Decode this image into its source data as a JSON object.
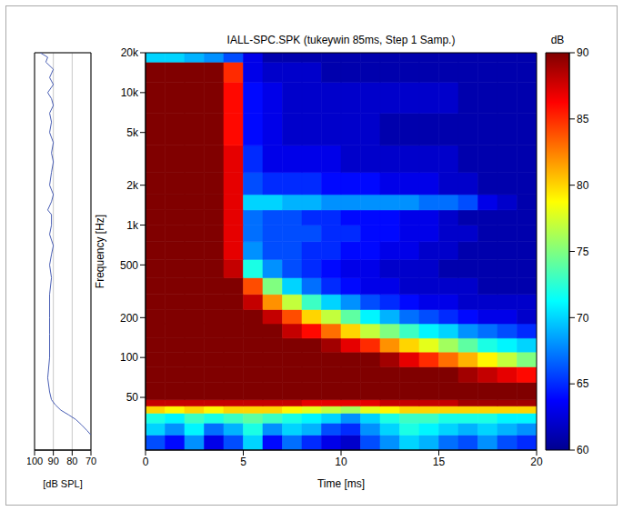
{
  "chart_data": [
    {
      "type": "line",
      "xlabel": "[dB SPL]",
      "xlim": [
        100,
        70
      ],
      "xticks": [
        100,
        90,
        80,
        70
      ],
      "ylim": [
        20,
        20000
      ],
      "yticks": [
        50,
        100,
        200,
        500,
        {
          "value": 1000,
          "label": "1k"
        },
        {
          "value": 2000,
          "label": "2k"
        },
        {
          "value": 5000,
          "label": "5k"
        },
        {
          "value": 10000,
          "label": "10k"
        },
        {
          "value": 20000,
          "label": "20k"
        }
      ],
      "log": "y",
      "grid": true,
      "tick_labels": "x",
      "color": "#4a5fb5",
      "x": [
        97,
        93,
        94,
        90,
        92,
        90,
        93,
        91,
        90,
        92,
        91,
        92,
        90,
        91,
        90,
        91,
        92,
        90,
        91,
        93,
        91,
        91,
        92,
        90,
        91,
        92,
        91,
        92,
        92,
        92,
        92,
        93,
        92,
        91,
        89,
        86,
        82,
        78,
        75,
        72,
        70
      ],
      "y": [
        20000,
        18500,
        17000,
        15000,
        13000,
        11500,
        10000,
        9000,
        8000,
        7000,
        6000,
        5000,
        4200,
        3500,
        3000,
        2500,
        2000,
        1700,
        1500,
        1300,
        1200,
        1000,
        850,
        700,
        600,
        500,
        400,
        300,
        200,
        150,
        100,
        70,
        55,
        48,
        44,
        40,
        37,
        34,
        31,
        28,
        26
      ]
    },
    {
      "type": "heatmap",
      "title": "IALL-SPC.SPK (tukeywin 85ms, Step 1 Samp.)",
      "xlabel": "Time [ms]",
      "ylabel": "Frequency [Hz]",
      "xlim": [
        0,
        20
      ],
      "xticks": [
        0,
        5,
        10,
        15,
        20
      ],
      "ylim": [
        20,
        20000
      ],
      "yticks": [
        50,
        100,
        200,
        500,
        {
          "value": 1000,
          "label": "1k"
        },
        {
          "value": 2000,
          "label": "2k"
        },
        {
          "value": 5000,
          "label": "5k"
        },
        {
          "value": 10000,
          "label": "10k"
        },
        {
          "value": 20000,
          "label": "20k"
        }
      ],
      "log": "y",
      "x_edges": [
        0,
        1,
        2,
        3,
        4,
        5,
        6,
        7,
        8,
        9,
        10,
        11,
        12,
        13,
        14,
        15,
        16,
        17,
        18,
        19,
        20
      ],
      "y_edges": [
        20,
        26,
        32,
        38,
        43,
        48,
        65,
        85,
        110,
        140,
        180,
        230,
        300,
        400,
        550,
        750,
        1000,
        1300,
        1700,
        2500,
        4000,
        7000,
        12000,
        17000,
        20000
      ],
      "cells": [
        [
          66,
          64,
          68,
          63,
          66,
          70,
          64,
          67,
          65,
          63,
          62,
          66,
          68,
          70,
          69,
          67,
          66,
          68,
          66,
          65
        ],
        [
          70,
          68,
          71,
          67,
          69,
          72,
          68,
          70,
          69,
          66,
          65,
          68,
          70,
          72,
          71,
          70,
          69,
          70,
          69,
          68
        ],
        [
          72,
          71,
          73,
          72,
          73,
          74,
          73,
          72,
          71,
          70,
          68,
          70,
          72,
          73,
          73,
          72,
          72,
          72,
          71,
          71
        ],
        [
          80,
          79,
          80,
          79,
          80,
          80,
          80,
          79,
          78,
          77,
          76,
          78,
          79,
          80,
          80,
          80,
          80,
          80,
          80,
          80
        ],
        [
          88,
          88,
          88,
          88,
          88,
          88,
          88,
          88,
          87,
          87,
          87,
          87,
          88,
          88,
          88,
          88,
          89,
          89,
          89,
          89
        ],
        [
          93,
          93,
          93,
          93,
          93,
          93,
          93,
          93,
          93,
          93,
          93,
          93,
          93,
          93,
          92,
          92,
          92,
          92,
          92,
          91
        ],
        [
          93,
          93,
          93,
          93,
          93,
          93,
          93,
          93,
          93,
          93,
          92,
          92,
          92,
          91,
          91,
          90,
          89,
          88,
          87,
          86
        ],
        [
          93,
          93,
          93,
          93,
          93,
          93,
          93,
          92,
          92,
          92,
          91,
          90,
          89,
          87,
          85,
          83,
          81,
          79,
          77,
          75
        ],
        [
          93,
          93,
          93,
          93,
          93,
          93,
          92,
          91,
          90,
          89,
          87,
          85,
          82,
          80,
          78,
          76,
          74,
          72,
          71,
          70
        ],
        [
          93,
          93,
          93,
          93,
          93,
          92,
          90,
          88,
          86,
          83,
          80,
          77,
          75,
          73,
          71,
          70,
          68,
          67,
          66,
          65
        ],
        [
          93,
          93,
          93,
          93,
          93,
          91,
          88,
          84,
          80,
          77,
          74,
          71,
          69,
          67,
          66,
          65,
          64,
          63,
          63,
          62
        ],
        [
          93,
          93,
          93,
          93,
          92,
          88,
          82,
          77,
          73,
          70,
          68,
          66,
          65,
          64,
          63,
          63,
          62,
          62,
          62,
          62
        ],
        [
          93,
          93,
          93,
          93,
          91,
          84,
          75,
          70,
          67,
          65,
          64,
          63,
          63,
          62,
          62,
          62,
          62,
          61,
          61,
          61
        ],
        [
          93,
          93,
          93,
          93,
          88,
          72,
          68,
          66,
          65,
          64,
          63,
          63,
          62,
          62,
          62,
          61,
          61,
          61,
          61,
          61
        ],
        [
          93,
          93,
          93,
          93,
          87,
          68,
          66,
          66,
          65,
          65,
          64,
          64,
          63,
          63,
          62,
          62,
          61,
          61,
          61,
          61
        ],
        [
          93,
          93,
          93,
          93,
          87,
          67,
          66,
          66,
          66,
          65,
          65,
          64,
          64,
          63,
          63,
          62,
          62,
          61,
          61,
          61
        ],
        [
          93,
          93,
          93,
          93,
          87,
          67,
          66,
          66,
          65,
          65,
          64,
          64,
          64,
          63,
          63,
          62,
          61,
          61,
          61,
          61
        ],
        [
          93,
          93,
          93,
          93,
          87,
          70,
          70,
          69,
          69,
          68,
          68,
          68,
          68,
          68,
          67,
          67,
          66,
          63,
          62,
          61
        ],
        [
          93,
          93,
          93,
          93,
          87,
          66,
          65,
          65,
          65,
          64,
          64,
          64,
          63,
          63,
          63,
          62,
          62,
          61,
          61,
          61
        ],
        [
          93,
          93,
          93,
          93,
          87,
          65,
          63,
          63,
          63,
          63,
          62,
          62,
          62,
          62,
          62,
          62,
          61,
          61,
          61,
          61
        ],
        [
          93,
          93,
          93,
          93,
          86,
          64,
          63,
          62,
          62,
          62,
          62,
          62,
          61,
          61,
          61,
          61,
          61,
          61,
          61,
          61
        ],
        [
          93,
          93,
          93,
          93,
          86,
          64,
          63,
          62,
          62,
          62,
          62,
          62,
          62,
          62,
          62,
          62,
          61,
          61,
          61,
          61
        ],
        [
          93,
          93,
          93,
          93,
          85,
          63,
          62,
          62,
          62,
          61,
          61,
          61,
          61,
          61,
          61,
          61,
          61,
          61,
          61,
          61
        ],
        [
          70,
          70,
          69,
          68,
          66,
          63,
          61,
          61,
          61,
          61,
          61,
          61,
          61,
          61,
          61,
          61,
          61,
          61,
          61,
          61
        ]
      ],
      "colorbar": {
        "label": "dB",
        "range": [
          60,
          90
        ],
        "ticks": [
          60,
          65,
          70,
          75,
          80,
          85,
          90
        ]
      }
    }
  ]
}
